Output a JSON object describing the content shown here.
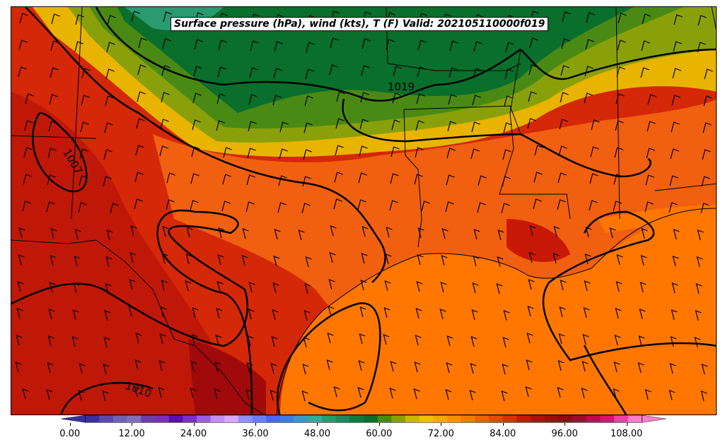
{
  "title": "Surface pressure (hPa), wind (kts), T (F) Valid: 202105110000f019",
  "isobar_labels": [
    "1019",
    "1007",
    "1010"
  ],
  "colorbar": {
    "ticks": [
      "0.00",
      "12.00",
      "24.00",
      "36.00",
      "48.00",
      "60.00",
      "72.00",
      "84.00",
      "96.00",
      "108.00"
    ],
    "tick_values": [
      0,
      12,
      24,
      36,
      48,
      60,
      72,
      84,
      96,
      108
    ],
    "min": -6,
    "max": 120,
    "colors": [
      "#3a2f9e",
      "#5a4ab0",
      "#6f62b6",
      "#8070b8",
      "#6a3ea8",
      "#7a2fb0",
      "#5a10a8",
      "#7a30c0",
      "#9a60d8",
      "#c090f0",
      "#d8a8f8",
      "#9090ff",
      "#6a7cff",
      "#4a66f0",
      "#3c7ee0",
      "#3a98c8",
      "#3aa898",
      "#2a9a70",
      "#20885a",
      "#107a40",
      "#0a6e2c",
      "#4a8a14",
      "#8aa00a",
      "#c8b800",
      "#f0c000",
      "#f8a800",
      "#f89000",
      "#f87800",
      "#f06000",
      "#e84800",
      "#d83000",
      "#c81808",
      "#b01010",
      "#a00a0a",
      "#900810",
      "#a00a30",
      "#c00850",
      "#e01070",
      "#f040a0",
      "#f880c8"
    ]
  },
  "map": {
    "ocean_color": "#ff7700",
    "land_hot_color": "#c81808",
    "land_warm_color": "#f06000",
    "north_green_color": "#0a6e2c",
    "mid_green_color": "#4a8a14",
    "yellow_color": "#d8b000"
  }
}
